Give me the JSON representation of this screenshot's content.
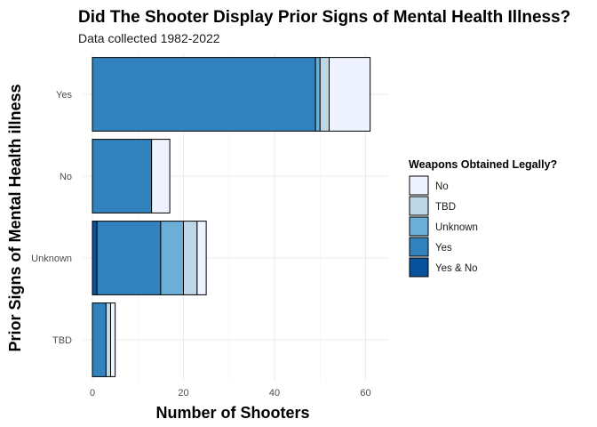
{
  "chart_data": {
    "type": "bar",
    "orientation": "horizontal",
    "stacked": true,
    "title": "Did The Shooter Display Prior Signs of Mental Health Illness?",
    "subtitle": "Data collected 1982-2022",
    "xlabel": "Number of Shooters",
    "ylabel": "Prior Signs of Mental Health illness",
    "xlim": [
      0,
      64
    ],
    "x_ticks": [
      0,
      20,
      40,
      60
    ],
    "categories": [
      "Yes",
      "No",
      "Unknown",
      "TBD"
    ],
    "grid": true,
    "legend": {
      "title": "Weapons Obtained Legally?",
      "placement": "right"
    },
    "series": [
      {
        "name": "Yes & No",
        "color": "#08519c",
        "values": [
          0,
          0,
          1,
          0
        ]
      },
      {
        "name": "Yes",
        "color": "#3182bd",
        "values": [
          49,
          13,
          14,
          3
        ]
      },
      {
        "name": "Unknown",
        "color": "#6baed6",
        "values": [
          1,
          0,
          5,
          0
        ]
      },
      {
        "name": "TBD",
        "color": "#bdd7e7",
        "values": [
          2,
          0,
          3,
          1
        ]
      },
      {
        "name": "No",
        "color": "#eff3ff",
        "values": [
          9,
          4,
          2,
          1
        ]
      }
    ],
    "legend_order": [
      "No",
      "TBD",
      "Unknown",
      "Yes",
      "Yes & No"
    ]
  }
}
